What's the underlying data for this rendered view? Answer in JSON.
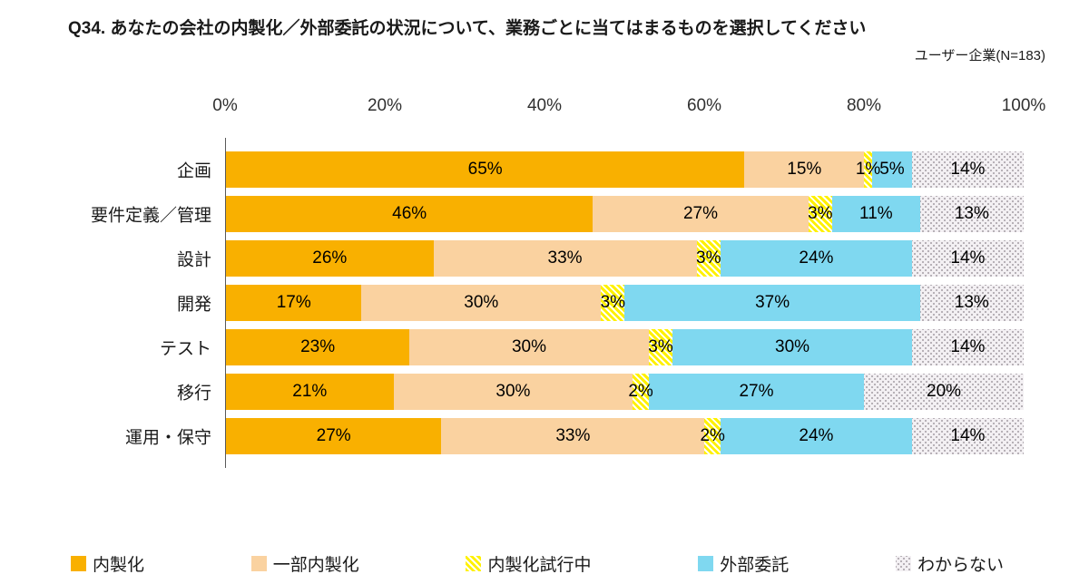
{
  "title": "Q34. あなたの会社の内製化／外部委託の状況について、業務ごとに当てはまるものを選択してください",
  "subtitle": "ユーザー企業(N=183)",
  "axis": {
    "ticks": [
      "0%",
      "20%",
      "40%",
      "60%",
      "80%",
      "100%"
    ]
  },
  "chart_data": {
    "type": "bar",
    "orientation": "horizontal",
    "stacked": true,
    "grid": false,
    "legend_position": "bottom",
    "xlim": [
      0,
      100
    ],
    "value_suffix": "%",
    "categories": [
      "企画",
      "要件定義／管理",
      "設計",
      "開発",
      "テスト",
      "移行",
      "運用・保守"
    ],
    "series": [
      {
        "key": "naiseika",
        "name": "内製化",
        "color": "#F9B000",
        "pattern": "solid",
        "values": [
          65,
          46,
          26,
          17,
          23,
          21,
          27
        ]
      },
      {
        "key": "ichibu-naiseika",
        "name": "一部内製化",
        "color": "#FAD2A0",
        "pattern": "solid",
        "values": [
          15,
          27,
          33,
          30,
          30,
          30,
          33
        ]
      },
      {
        "key": "shiko-chu",
        "name": "内製化試行中",
        "color": "#FFF100",
        "pattern": "diagonal-stripes",
        "values": [
          1,
          3,
          3,
          3,
          3,
          2,
          2
        ]
      },
      {
        "key": "gaibu-itaku",
        "name": "外部委託",
        "color": "#7FD8F0",
        "pattern": "solid",
        "values": [
          5,
          11,
          24,
          37,
          30,
          27,
          24
        ]
      },
      {
        "key": "wakaranai",
        "name": "わからない",
        "color": "#F3F0F3",
        "pattern": "dots",
        "values": [
          14,
          13,
          14,
          13,
          14,
          20,
          14
        ]
      }
    ]
  }
}
